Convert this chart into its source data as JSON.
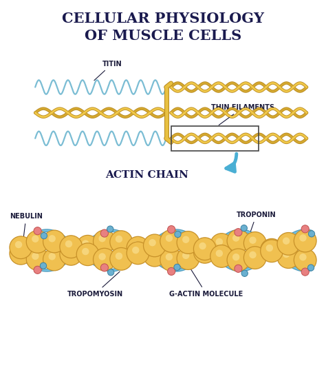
{
  "title_line1": "CELLULAR PHYSIOLOGY",
  "title_line2": "OF MUSCLE CELLS",
  "title_color": "#1a1a4e",
  "title_fontsize": 15,
  "bg_color": "#ffffff",
  "label_titin": "TITIN",
  "label_thin_filaments": "THIN FILAMENTS",
  "label_actin_chain": "ACTIN CHAIN",
  "label_nebulin": "NEBULIN",
  "label_troponin": "TROPONIN",
  "label_tropomyosin": "TROPOMYOSIN",
  "label_gactin": "G-ACTIN MOLECULE",
  "spring_color": "#7bbdd4",
  "filament_color_outer": "#d4a830",
  "filament_color_inner": "#f0c84a",
  "filament_stroke": "#b8891e",
  "junction_color": "#e8c040",
  "arrow_color": "#4aafd4",
  "label_color": "#1a1a3a",
  "label_fontsize": 6.5,
  "actin_ball_color": "#f0c050",
  "actin_ball_edge": "#c8922a",
  "tropomyosin_color": "#7ab8d8",
  "nebulin_color": "#8ac0d8",
  "troponin_pink": "#e88a8a",
  "troponin_blue": "#6ab0d0"
}
